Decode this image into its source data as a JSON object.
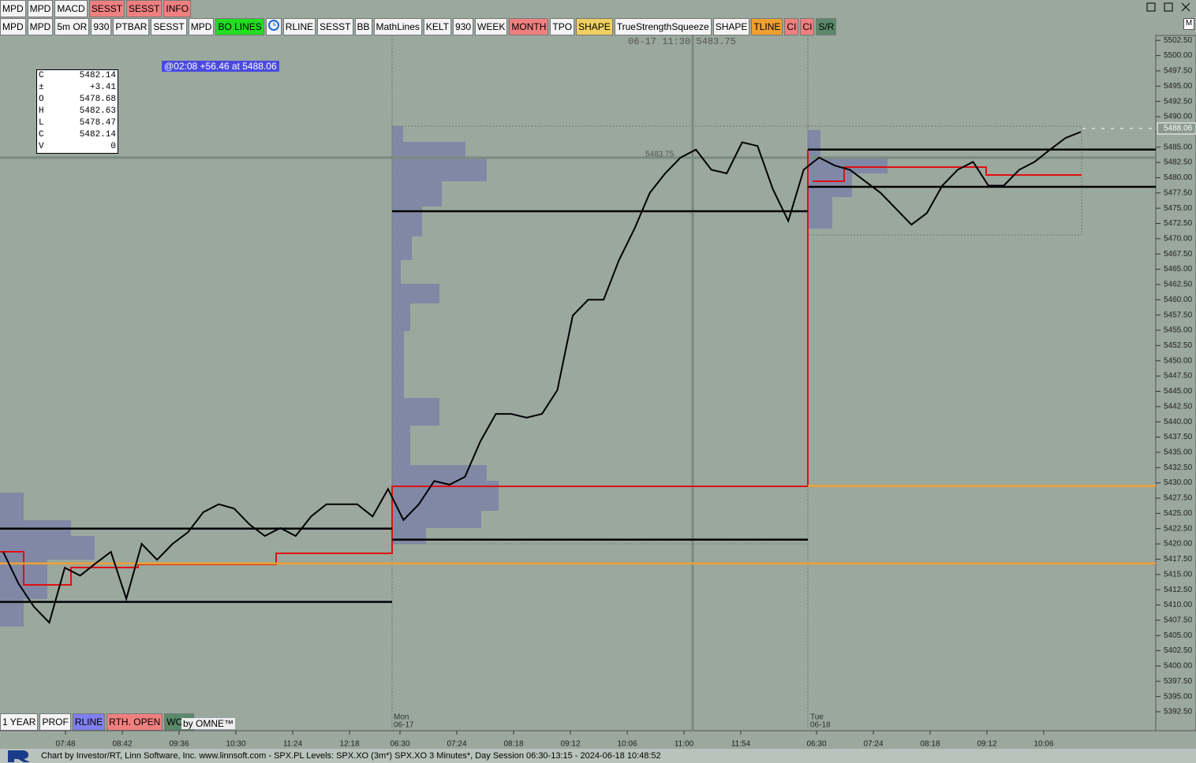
{
  "toolbar": {
    "row1": [
      {
        "label": "MPD",
        "color": "#f4f4f4"
      },
      {
        "label": "MPD",
        "color": "#f4f4f4"
      },
      {
        "label": "MACD",
        "color": "#f4f4f4"
      },
      {
        "label": "SESST",
        "color": "#f08080"
      },
      {
        "label": "SESST",
        "color": "#f08080"
      },
      {
        "label": "INFO",
        "color": "#f08080"
      }
    ],
    "row2": [
      {
        "label": "MPD",
        "color": "#f4f4f4"
      },
      {
        "label": "MPD",
        "color": "#f4f4f4"
      },
      {
        "label": "5m OR",
        "color": "#f4f4f4"
      },
      {
        "label": "930",
        "color": "#f4f4f4"
      },
      {
        "label": "PTBAR",
        "color": "#f4f4f4"
      },
      {
        "label": "SESST",
        "color": "#f4f4f4"
      },
      {
        "label": "MPD",
        "color": "#f4f4f4"
      },
      {
        "label": "BO LINES",
        "color": "#22dd22"
      },
      {
        "label": "RLINE",
        "color": "#f4f4f4"
      },
      {
        "label": "SESST",
        "color": "#f4f4f4"
      },
      {
        "label": "BB",
        "color": "#f4f4f4"
      },
      {
        "label": "MathLines",
        "color": "#f4f4f4"
      },
      {
        "label": "KELT",
        "color": "#f4f4f4"
      },
      {
        "label": "930",
        "color": "#f4f4f4"
      },
      {
        "label": "WEEK",
        "color": "#f4f4f4"
      },
      {
        "label": "MONTH",
        "color": "#f08080"
      },
      {
        "label": "TPO",
        "color": "#f4f4f4"
      },
      {
        "label": "SHAPE",
        "color": "#f0d060"
      },
      {
        "label": "TrueStrengthSqueeze",
        "color": "#f4f4f4"
      },
      {
        "label": "SHAPE",
        "color": "#f4f4f4"
      },
      {
        "label": "TLINE",
        "color": "#f0a030"
      },
      {
        "label": "CI",
        "color": "#f08080"
      },
      {
        "label": "CI",
        "color": "#f08080"
      },
      {
        "label": "S/R",
        "color": "#5a8a6a"
      }
    ],
    "bottom": [
      {
        "label": "1 YEAR",
        "color": "#f4f4f4"
      },
      {
        "label": "PROF",
        "color": "#f4f4f4"
      },
      {
        "label": "RLINE",
        "color": "#8080f0"
      },
      {
        "label": "RTH. OPEN",
        "color": "#f08080"
      },
      {
        "label": "WCCI",
        "color": "#5a8a6a"
      }
    ]
  },
  "brand": "by OMNE™",
  "corner_label": "M",
  "hover_text": "06-17 11:30  5483.75",
  "cursor_label": "@02:08  +56.46 at 5488.06",
  "price_marker": "5483.75",
  "info_box": [
    [
      "C",
      "5482.14"
    ],
    [
      "±",
      "+3.41"
    ],
    [
      "O",
      "5478.68"
    ],
    [
      "H",
      "5482.63"
    ],
    [
      "L",
      "5478.47"
    ],
    [
      "C",
      "5482.14"
    ],
    [
      "V",
      "0"
    ]
  ],
  "footer": "Chart by Investor/RT, Linn Software, Inc. www.linnsoft.com - SPX.PL Levels: SPX.XO (3m*) SPX.XO 3 Minutes*, Day Session 06:30-13:15 - 2024-06-18 10:48:52",
  "chart_data": {
    "type": "line",
    "ylim": [
      5389.4,
      5503.3
    ],
    "yticks": [
      {
        "value": 5392.5,
        "label": "5392.50"
      },
      {
        "value": 5395,
        "label": "5395.00"
      },
      {
        "value": 5397.5,
        "label": "5397.50"
      },
      {
        "value": 5400,
        "label": "5400.00"
      },
      {
        "value": 5402.5,
        "label": "5402.50"
      },
      {
        "value": 5405,
        "label": "5405.00"
      },
      {
        "value": 5407.5,
        "label": "5407.50"
      },
      {
        "value": 5410,
        "label": "5410.00"
      },
      {
        "value": 5412.5,
        "label": "5412.50"
      },
      {
        "value": 5415,
        "label": "5415.00"
      },
      {
        "value": 5417.5,
        "label": "5417.50"
      },
      {
        "value": 5420,
        "label": "5420.00"
      },
      {
        "value": 5422.5,
        "label": "5422.50"
      },
      {
        "value": 5425,
        "label": "5425.00"
      },
      {
        "value": 5427.5,
        "label": "5427.50"
      },
      {
        "value": 5430,
        "label": "5430.00"
      },
      {
        "value": 5432.5,
        "label": "5432.50"
      },
      {
        "value": 5435,
        "label": "5435.00"
      },
      {
        "value": 5437.5,
        "label": "5437.50"
      },
      {
        "value": 5440,
        "label": "5440.00"
      },
      {
        "value": 5442.5,
        "label": "5442.50"
      },
      {
        "value": 5445,
        "label": "5445.00"
      },
      {
        "value": 5447.5,
        "label": "5447.50"
      },
      {
        "value": 5450,
        "label": "5450.00"
      },
      {
        "value": 5452.5,
        "label": "5452.50"
      },
      {
        "value": 5455,
        "label": "5455.00"
      },
      {
        "value": 5457.5,
        "label": "5457.50"
      },
      {
        "value": 5460,
        "label": "5460.00"
      },
      {
        "value": 5462.5,
        "label": "5462.50"
      },
      {
        "value": 5465,
        "label": "5465.00"
      },
      {
        "value": 5467.5,
        "label": "5467.50"
      },
      {
        "value": 5470,
        "label": "5470.00"
      },
      {
        "value": 5472.5,
        "label": "5472.50"
      },
      {
        "value": 5475,
        "label": "5475.00"
      },
      {
        "value": 5477.5,
        "label": "5477.50"
      },
      {
        "value": 5480,
        "label": "5480.00"
      },
      {
        "value": 5482.5,
        "label": "5482.50"
      },
      {
        "value": 5485,
        "label": "5485.00"
      },
      {
        "value": 5487.5,
        "label": "5487.50"
      },
      {
        "value": 5490,
        "label": "5490.00"
      },
      {
        "value": 5492.5,
        "label": "5492.50"
      },
      {
        "value": 5495,
        "label": "5495.00"
      },
      {
        "value": 5497.5,
        "label": "5497.50"
      },
      {
        "value": 5500,
        "label": "5500.00"
      },
      {
        "value": 5502.5,
        "label": "5502.50"
      }
    ],
    "time_labels": [
      "07:48",
      "08:42",
      "09:36",
      "10:30",
      "11:24",
      "12:18",
      "06:30",
      "07:24",
      "08:18",
      "09:12",
      "10:06",
      "11:00",
      "11:54",
      "06:30",
      "07:24",
      "08:18",
      "09:12",
      "10:06"
    ],
    "day_labels": [
      {
        "day": "Mon",
        "date": "06-17"
      },
      {
        "day": "Tue",
        "date": "06-18"
      }
    ],
    "last_price": 5488.06,
    "series": [
      {
        "name": "SPX.XO",
        "color": "#000000",
        "values": [
          5418.7,
          5413.5,
          5409.7,
          5407.1,
          5416.1,
          5414.8,
          5416.8,
          5418.7,
          5411.0,
          5420.0,
          5417.4,
          5420.0,
          5421.9,
          5425.2,
          5426.5,
          5425.8,
          5423.2,
          5421.3,
          5422.6,
          5421.3,
          5424.5,
          5426.5,
          5426.5,
          5426.5,
          5424.5,
          5429.0,
          5423.9,
          5426.5,
          5430.3,
          5429.7,
          5431.0,
          5436.8,
          5441.3,
          5441.3,
          5440.7,
          5441.3,
          5445.2,
          5457.4,
          5460.0,
          5460.0,
          5466.5,
          5471.6,
          5477.5,
          5480.7,
          5483.3,
          5484.6,
          5481.3,
          5480.7,
          5485.8,
          5485.2,
          5478.1,
          5472.9,
          5481.3,
          5483.3,
          5482.0,
          5481.3,
          5479.4,
          5477.5,
          5474.9,
          5472.3,
          5474.2,
          5478.7,
          5481.3,
          5482.6,
          5478.7,
          5478.7,
          5481.3,
          5482.6,
          5484.6,
          5486.5,
          5487.5
        ]
      }
    ],
    "levels": [
      {
        "value": 5474.5,
        "color": "#000000"
      },
      {
        "value": 5484.6,
        "color": "#000000"
      },
      {
        "value": 5478.5,
        "color": "#000000"
      },
      {
        "value": 5420.7,
        "color": "#000000"
      },
      {
        "value": 5422.5,
        "color": "#000000"
      },
      {
        "value": 5410.5,
        "color": "#000000"
      },
      {
        "value": 5429.5,
        "color": "#f0a030"
      },
      {
        "value": 5416.8,
        "color": "#f0a030"
      }
    ]
  }
}
